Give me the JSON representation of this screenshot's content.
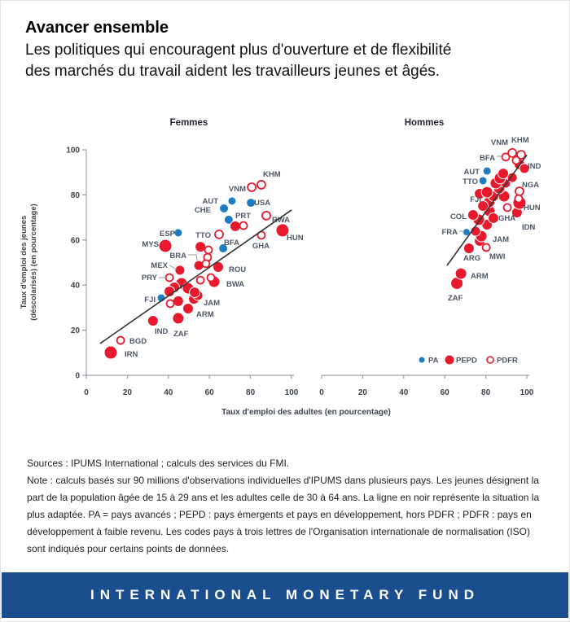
{
  "header": {
    "title": "Avancer ensemble",
    "subtitle": [
      "Les politiques qui encouragent plus d'ouverture et de flexibilité",
      "des marchés du travail aident les travailleurs jeunes et âgés."
    ]
  },
  "footer": {
    "sources": "Sources : IPUMS International ; calculs des services du FMI.",
    "note": "Note : calculs basés sur 90 millions d'observations individuelles d'IPUMS dans plusieurs pays. Les jeunes désignent la part de la population âgée de 15 à 29 ans et les adultes celle de 30 à 64 ans. La ligne en noir représente la situation la plus adaptée. PA = pays avancés ; PEPD : pays émergents et pays en développement, hors PDFR ; PDFR : pays en développement à faible revenu. Les codes pays à trois lettres de l'Organisation internationale de normalisation (ISO) sont indiqués pour certains points de données."
  },
  "banner": {
    "text": "INTERNATIONAL MONETARY FUND",
    "bg": "#1b4e8f"
  },
  "colors": {
    "pa": "#1f7bc2",
    "pepd": "#e8192c",
    "pdfr": "#e8192c",
    "country_label": "#4d5766",
    "axis": "#9aa0a6",
    "tick_text": "#3c434d",
    "trend": "#333333",
    "leader": "#999999",
    "panel_title": "#1f2430"
  },
  "legend": {
    "items": [
      {
        "label": "PA",
        "type": "PA"
      },
      {
        "label": "PEPD",
        "type": "PEPD"
      },
      {
        "label": "PDFR",
        "type": "PDFR"
      }
    ]
  },
  "chart_data": [
    {
      "type": "scatter",
      "title": "Femmes",
      "xlabel": "Taux d'emploi des adultes (en pourcentage)",
      "ylabel_line1": "Taux d'emploi des jeunes",
      "ylabel_line2": "(déscolarisés) (en pourcentage)",
      "xlim": [
        0,
        100
      ],
      "ylim": [
        0,
        100
      ],
      "xticks": [
        0,
        20,
        40,
        60,
        80,
        100
      ],
      "yticks": [
        0,
        20,
        40,
        60,
        80,
        100
      ],
      "trend": [
        [
          6.7,
          14.1
        ],
        [
          100,
          73.3
        ]
      ],
      "points": [
        {
          "c": "ESP",
          "g": "PA",
          "x": 44.8,
          "y": 63.2,
          "r": 5,
          "lbl": [
            214,
            289,
            "e"
          ]
        },
        {
          "c": "CHE",
          "g": "PA",
          "x": 67.1,
          "y": 74.0,
          "r": 5.5,
          "lbl": [
            258,
            260,
            "e"
          ]
        },
        {
          "c": "AUT",
          "g": "PA",
          "x": 71.0,
          "y": 77.3,
          "r": 5,
          "lbl": [
            267,
            249,
            "e"
          ]
        },
        {
          "c": "USA",
          "g": "PA",
          "x": 80.2,
          "y": 76.5,
          "r": 5.5,
          "lbl": [
            311,
            251,
            "s"
          ]
        },
        {
          "c": "PRT",
          "g": "PA",
          "x": 69.4,
          "y": 69.0,
          "r": 5.5,
          "lbl": [
            288,
            267,
            "s"
          ]
        },
        {
          "c": "",
          "g": "PA",
          "x": 66.7,
          "y": 56.3,
          "r": 5.5
        },
        {
          "c": "FJI",
          "g": "PA",
          "x": 36.5,
          "y": 34.3,
          "r": 5,
          "lbl": [
            190,
            370,
            "e"
          ]
        },
        {
          "c": "IRN",
          "g": "PEPD",
          "x": 11.9,
          "y": 10.1,
          "r": 8,
          "lbl": [
            152,
            437,
            "s"
          ]
        },
        {
          "c": "IND",
          "g": "PEPD",
          "x": 32.5,
          "y": 24.2,
          "r": 6.5,
          "lbl": [
            189,
            409,
            "s"
          ]
        },
        {
          "c": "ZAF",
          "g": "PEPD",
          "x": 44.8,
          "y": 25.3,
          "r": 7,
          "lbl": [
            212,
            412,
            "s"
          ]
        },
        {
          "c": "ARM",
          "g": "PEPD",
          "x": 49.6,
          "y": 29.6,
          "r": 6.5,
          "lbl": [
            240,
            388,
            "s"
          ]
        },
        {
          "c": "JAM",
          "g": "PEPD",
          "x": 52.4,
          "y": 33.9,
          "r": 6.5,
          "lbl": [
            249,
            374,
            "s"
          ]
        },
        {
          "c": "",
          "g": "PEPD",
          "x": 54.4,
          "y": 35.4,
          "r": 6
        },
        {
          "c": "",
          "g": "PEPD",
          "x": 44.8,
          "y": 32.9,
          "r": 6.5
        },
        {
          "c": "",
          "g": "PEPD",
          "x": 46.4,
          "y": 40.8,
          "r": 7
        },
        {
          "c": "",
          "g": "PEPD",
          "x": 49.6,
          "y": 38.6,
          "r": 7
        },
        {
          "c": "",
          "g": "PEPD",
          "x": 52.8,
          "y": 36.8,
          "r": 6.5
        },
        {
          "c": "",
          "g": "PEPD",
          "x": 42.9,
          "y": 39.0,
          "r": 6.5
        },
        {
          "c": "",
          "g": "PEPD",
          "x": 40.5,
          "y": 37.2,
          "r": 6.5
        },
        {
          "c": "MEX",
          "g": "PEPD",
          "x": 45.6,
          "y": 46.6,
          "r": 6,
          "lbl": [
            205,
            328,
            "e"
          ],
          "leader": [
            [
              207,
              325
            ],
            [
              216,
              330
            ]
          ]
        },
        {
          "c": "BRA",
          "g": "PEPD",
          "x": 54.8,
          "y": 48.7,
          "r": 6,
          "lbl": [
            228,
            316,
            "e"
          ],
          "leader": [
            [
              230,
              312
            ],
            [
              240,
              312
            ],
            [
              241,
              319
            ]
          ]
        },
        {
          "c": "ROU",
          "g": "PEPD",
          "x": 64.3,
          "y": 48.0,
          "r": 6.5,
          "lbl": [
            280,
            333,
            "s"
          ]
        },
        {
          "c": "BWA",
          "g": "PEPD",
          "x": 62.3,
          "y": 41.5,
          "r": 7,
          "lbl": [
            277,
            351,
            "s"
          ]
        },
        {
          "c": "MYS",
          "g": "PEPD",
          "x": 38.5,
          "y": 57.4,
          "r": 8,
          "lbl": [
            194,
            302,
            "e"
          ]
        },
        {
          "c": "",
          "g": "PEPD",
          "x": 55.6,
          "y": 57.0,
          "r": 6.5
        },
        {
          "c": "",
          "g": "PEPD",
          "x": 72.6,
          "y": 66.1,
          "r": 6.5
        },
        {
          "c": "HUN",
          "g": "PEPD",
          "x": 95.6,
          "y": 64.3,
          "r": 8,
          "lbl": [
            351,
            294,
            "s"
          ]
        },
        {
          "c": "KHM",
          "g": "PDFR",
          "x": 85.3,
          "y": 84.5,
          "r": 5,
          "lbl": [
            322,
            216,
            "s"
          ]
        },
        {
          "c": "VNM",
          "g": "PDFR",
          "x": 80.6,
          "y": 83.4,
          "r": 5,
          "lbl": [
            301,
            234,
            "e"
          ]
        },
        {
          "c": "RWA",
          "g": "PDFR",
          "x": 87.7,
          "y": 70.8,
          "r": 5,
          "lbl": [
            333,
            272,
            "s"
          ]
        },
        {
          "c": "BFA",
          "g": "PDFR",
          "x": 76.6,
          "y": 66.4,
          "r": 4.5,
          "lbl": [
            293,
            300,
            "e"
          ]
        },
        {
          "c": "TTO",
          "g": "PDFR",
          "x": 64.7,
          "y": 62.5,
          "r": 5,
          "lbl": [
            258,
            291,
            "e"
          ]
        },
        {
          "c": "GHA",
          "g": "PDFR",
          "x": 85.3,
          "y": 62.1,
          "r": 4.5,
          "lbl": [
            330,
            304,
            "e"
          ]
        },
        {
          "c": "",
          "g": "PDFR",
          "x": 59.5,
          "y": 55.6,
          "r": 4.5
        },
        {
          "c": "",
          "g": "PDFR",
          "x": 59.1,
          "y": 52.3,
          "r": 4.5
        },
        {
          "c": "",
          "g": "PDFR",
          "x": 58.3,
          "y": 49.5,
          "r": 4.5
        },
        {
          "c": "PRY",
          "g": "PDFR",
          "x": 40.5,
          "y": 43.3,
          "r": 4.5,
          "lbl": [
            192,
            343,
            "e"
          ],
          "leader": [
            [
              194,
              340
            ],
            [
              203,
              340
            ]
          ]
        },
        {
          "c": "",
          "g": "PDFR",
          "x": 55.6,
          "y": 42.2,
          "r": 4.5
        },
        {
          "c": "",
          "g": "PDFR",
          "x": 60.7,
          "y": 43.3,
          "r": 4.5
        },
        {
          "c": "",
          "g": "PDFR",
          "x": 40.9,
          "y": 31.8,
          "r": 4.5
        },
        {
          "c": "BGD",
          "g": "PDFR",
          "x": 16.7,
          "y": 15.5,
          "r": 4.5,
          "lbl": [
            158,
            421,
            "s"
          ]
        }
      ]
    },
    {
      "type": "scatter",
      "title": "Hommes",
      "xlim": [
        0,
        100
      ],
      "ylim": [
        0,
        100
      ],
      "xticks": [
        0,
        20,
        40,
        60,
        80,
        100
      ],
      "trend": [
        [
          61.1,
          48.7
        ],
        [
          100,
          97.7
        ]
      ],
      "points": [
        {
          "c": "AUT",
          "g": "PA",
          "x": 80.6,
          "y": 90.6,
          "r": 5,
          "lbl": [
            588,
            213,
            "e"
          ]
        },
        {
          "c": "TTO",
          "g": "PA",
          "x": 78.6,
          "y": 86.3,
          "r": 5,
          "lbl": [
            586,
            225,
            "e"
          ]
        },
        {
          "c": "FJI",
          "g": "PA",
          "x": 81.0,
          "y": 80.1,
          "r": 5,
          "lbl": [
            590,
            247,
            "e"
          ]
        },
        {
          "c": "FRA",
          "g": "PA",
          "x": 70.6,
          "y": 63.5,
          "r": 4.5,
          "lbl": [
            561,
            287,
            "e"
          ],
          "leader": [
            [
              563,
              283
            ],
            [
              569,
              283
            ]
          ]
        },
        {
          "c": "ZAF",
          "g": "PEPD",
          "x": 65.9,
          "y": 40.8,
          "r": 7.5,
          "lbl": [
            549,
            368,
            "s"
          ]
        },
        {
          "c": "ARM",
          "g": "PEPD",
          "x": 67.9,
          "y": 45.1,
          "r": 7,
          "lbl": [
            577,
            341,
            "s"
          ]
        },
        {
          "c": "ARG",
          "g": "PEPD",
          "x": 71.8,
          "y": 56.3,
          "r": 6.5,
          "lbl": [
            568,
            319,
            "s"
          ]
        },
        {
          "c": "JAM",
          "g": "PEPD",
          "x": 77.0,
          "y": 59.6,
          "r": 6.5,
          "lbl": [
            604,
            296,
            "s"
          ]
        },
        {
          "c": "",
          "g": "PEPD",
          "x": 77.8,
          "y": 61.7,
          "r": 7
        },
        {
          "c": "",
          "g": "PEPD",
          "x": 75.0,
          "y": 63.9,
          "r": 6
        },
        {
          "c": "",
          "g": "PEPD",
          "x": 80.6,
          "y": 66.8,
          "r": 6.5
        },
        {
          "c": "",
          "g": "PEPD",
          "x": 76.6,
          "y": 69.0,
          "r": 7
        },
        {
          "c": "COL",
          "g": "PEPD",
          "x": 73.8,
          "y": 71.1,
          "r": 6.5,
          "lbl": [
            572,
            268,
            "e"
          ]
        },
        {
          "c": "",
          "g": "PEPD",
          "x": 81.7,
          "y": 72.9,
          "r": 7
        },
        {
          "c": "",
          "g": "PEPD",
          "x": 83.7,
          "y": 69.7,
          "r": 6.5
        },
        {
          "c": "IDN",
          "g": "PEPD",
          "x": 95.2,
          "y": 72.2,
          "r": 6.5,
          "lbl": [
            640,
            281,
            "s"
          ]
        },
        {
          "c": "HUN",
          "g": "PEPD",
          "x": 96.4,
          "y": 76.5,
          "r": 8,
          "lbl": [
            642,
            257,
            "s"
          ]
        },
        {
          "c": "",
          "g": "PEPD",
          "x": 81.7,
          "y": 76.9,
          "r": 7
        },
        {
          "c": "",
          "g": "PEPD",
          "x": 78.6,
          "y": 75.1,
          "r": 6.5
        },
        {
          "c": "",
          "g": "PEPD",
          "x": 83.7,
          "y": 79.4,
          "r": 6.5
        },
        {
          "c": "",
          "g": "PEPD",
          "x": 88.9,
          "y": 79.4,
          "r": 7
        },
        {
          "c": "",
          "g": "PEPD",
          "x": 77.0,
          "y": 80.5,
          "r": 6.5
        },
        {
          "c": "",
          "g": "PEPD",
          "x": 80.6,
          "y": 81.2,
          "r": 7
        },
        {
          "c": "",
          "g": "PEPD",
          "x": 86.5,
          "y": 83.0,
          "r": 7
        },
        {
          "c": "",
          "g": "PEPD",
          "x": 84.9,
          "y": 85.2,
          "r": 7
        },
        {
          "c": "",
          "g": "PEPD",
          "x": 89.7,
          "y": 85.2,
          "r": 6
        },
        {
          "c": "",
          "g": "PEPD",
          "x": 86.9,
          "y": 87.4,
          "r": 7
        },
        {
          "c": "",
          "g": "PEPD",
          "x": 92.9,
          "y": 87.7,
          "r": 6
        },
        {
          "c": "",
          "g": "PEPD",
          "x": 88.5,
          "y": 89.5,
          "r": 6.5
        },
        {
          "c": "IND",
          "g": "PEPD",
          "x": 96.4,
          "y": 93.5,
          "r": 6.5,
          "lbl": [
            647,
            206,
            "s"
          ]
        },
        {
          "c": "",
          "g": "PEPD",
          "x": 98.8,
          "y": 91.7,
          "r": 6
        },
        {
          "c": "VNM",
          "g": "PDFR",
          "x": 92.9,
          "y": 98.6,
          "r": 5,
          "lbl": [
            623,
            177,
            "e"
          ]
        },
        {
          "c": "KHM",
          "g": "PDFR",
          "x": 97.2,
          "y": 97.8,
          "r": 5,
          "lbl": [
            627,
            174,
            "s"
          ]
        },
        {
          "c": "BFA",
          "g": "PDFR",
          "x": 89.7,
          "y": 96.8,
          "r": 4.5,
          "lbl": [
            607,
            196,
            "e"
          ],
          "leader": [
            [
              609,
              191
            ],
            [
              615,
              191
            ]
          ]
        },
        {
          "c": "",
          "g": "PDFR",
          "x": 94.8,
          "y": 95.3,
          "r": 4.5
        },
        {
          "c": "NGA",
          "g": "PDFR",
          "x": 96.4,
          "y": 81.6,
          "r": 5,
          "lbl": [
            640,
            229,
            "s"
          ]
        },
        {
          "c": "",
          "g": "PDFR",
          "x": 96.0,
          "y": 78.3,
          "r": 4.5
        },
        {
          "c": "GHA",
          "g": "PDFR",
          "x": 90.5,
          "y": 74.4,
          "r": 4.5,
          "lbl": [
            611,
            270,
            "s"
          ]
        },
        {
          "c": "MWI",
          "g": "PDFR",
          "x": 80.2,
          "y": 56.7,
          "r": 4.5,
          "lbl": [
            600,
            317,
            "s"
          ]
        }
      ]
    }
  ]
}
